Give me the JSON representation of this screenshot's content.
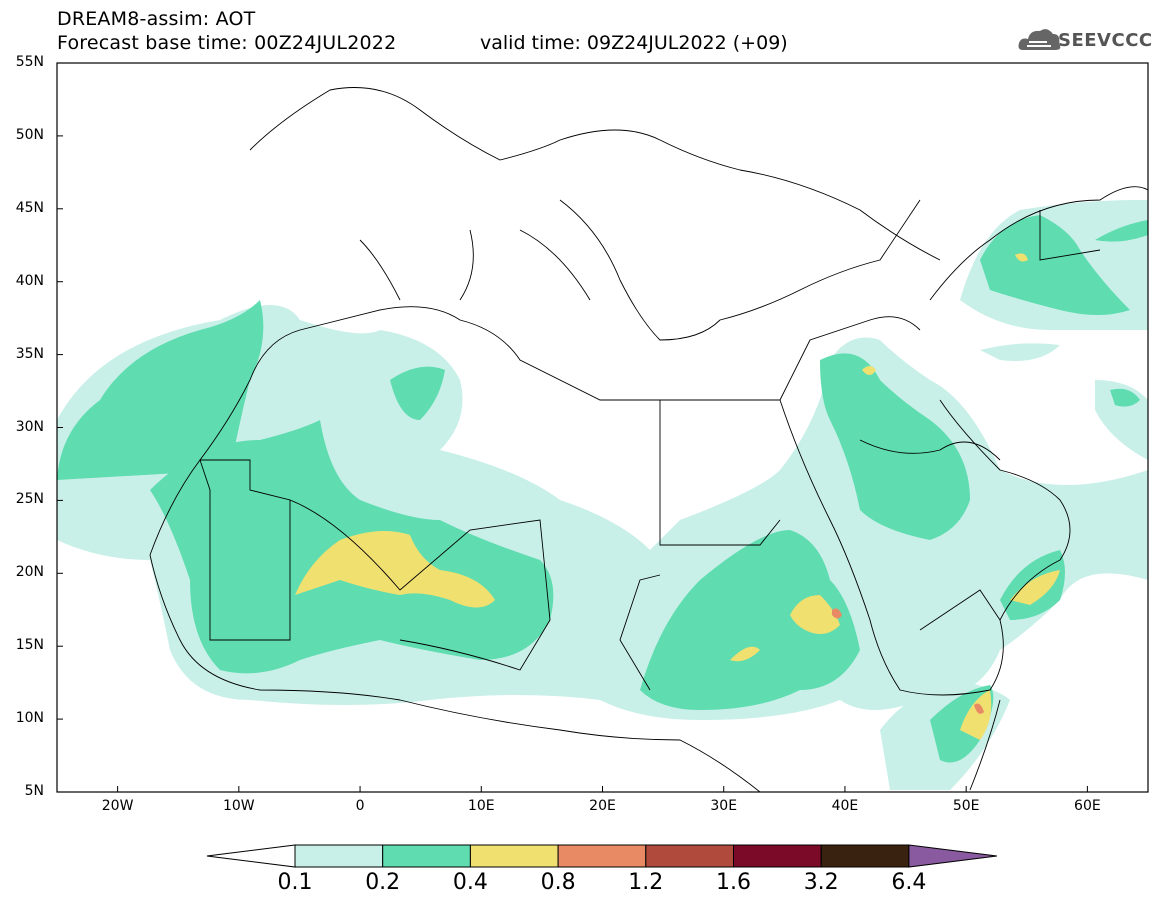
{
  "header": {
    "title_line1": "DREAM8-assim: AOT",
    "title_line2": "Forecast base time: 00Z24JUL2022",
    "valid_time": "valid time: 09Z24JUL2022 (+09)",
    "logo_text": "SEEVCCC"
  },
  "map": {
    "variable": "AOT",
    "projection": "equirectangular",
    "lon_range": [
      -25,
      65
    ],
    "lat_range": [
      5,
      55
    ],
    "lat_labels": [
      "55N",
      "50N",
      "45N",
      "40N",
      "35N",
      "30N",
      "25N",
      "20N",
      "15N",
      "10N",
      "5N"
    ],
    "lon_labels": [
      "20W",
      "10W",
      "0",
      "10E",
      "20E",
      "30E",
      "40E",
      "50E",
      "60E"
    ]
  },
  "colorbar": {
    "levels": [
      "0.1",
      "0.2",
      "0.4",
      "0.8",
      "1.2",
      "1.6",
      "3.2",
      "6.4"
    ],
    "colors": [
      "#ffffff",
      "#c8f0e8",
      "#5fdcb0",
      "#f0e070",
      "#e88a64",
      "#b04a3c",
      "#7a0a28",
      "#3a2210",
      "#8a5aa0"
    ]
  }
}
